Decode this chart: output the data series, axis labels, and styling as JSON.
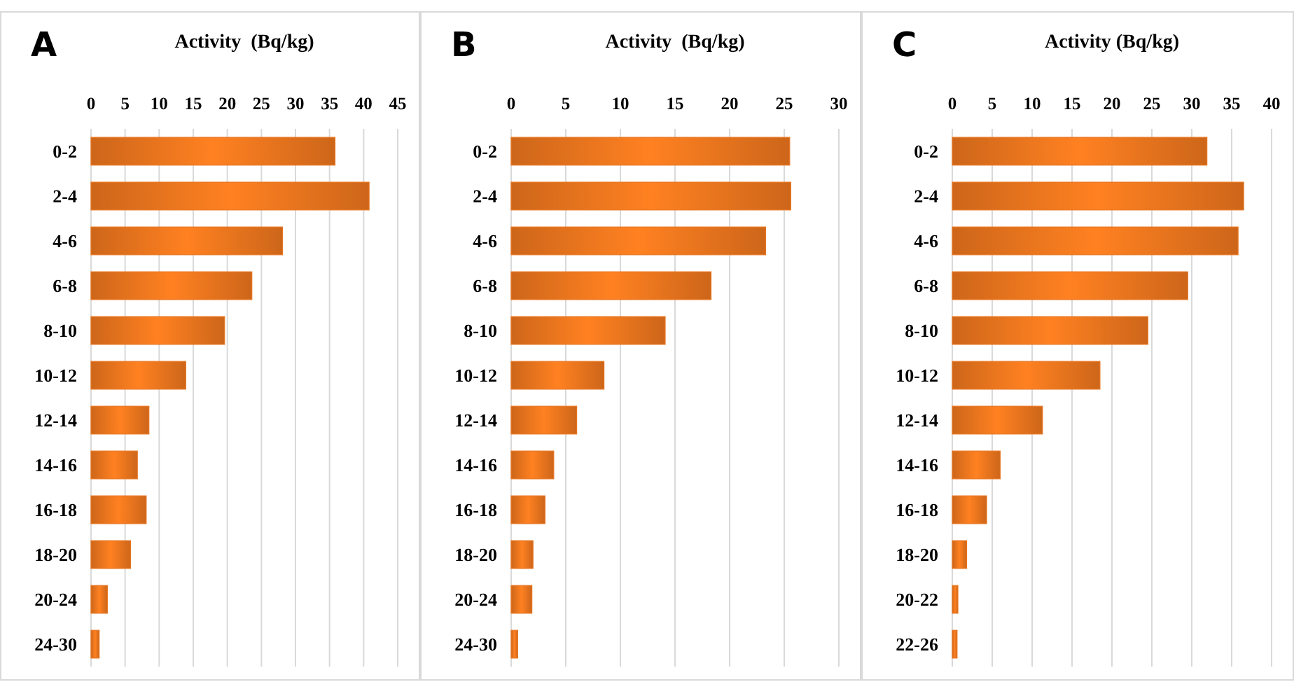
{
  "chart_data": [
    {
      "type": "bar",
      "orientation": "horizontal",
      "title": "A",
      "xlabel": "Activity  (Bq/kg)",
      "categories": [
        "0-2",
        "2-4",
        "4-6",
        "6-8",
        "8-10",
        "10-12",
        "12-14",
        "14-16",
        "16-18",
        "18-20",
        "20-24",
        "24-30"
      ],
      "values": [
        35.8,
        40.8,
        28.1,
        23.6,
        19.6,
        13.9,
        8.5,
        6.8,
        8.1,
        5.8,
        2.4,
        1.2
      ],
      "color": "#e8741e",
      "xlim": [
        0,
        45
      ],
      "xticks": [
        0,
        5,
        10,
        15,
        20,
        25,
        30,
        35,
        40,
        45
      ],
      "grid": "x"
    },
    {
      "type": "bar",
      "orientation": "horizontal",
      "title": "B",
      "xlabel": "Activity  (Bq/kg)",
      "categories": [
        "0-2",
        "2-4",
        "4-6",
        "6-8",
        "8-10",
        "10-12",
        "12-14",
        "14-16",
        "16-18",
        "18-20",
        "20-24",
        "24-30"
      ],
      "values": [
        25.5,
        25.6,
        23.3,
        18.3,
        14.1,
        8.5,
        6.0,
        3.9,
        3.1,
        2.0,
        1.9,
        0.6
      ],
      "color": "#e8741e",
      "xlim": [
        0,
        30
      ],
      "xticks": [
        0,
        5,
        10,
        15,
        20,
        25,
        30
      ],
      "grid": "x"
    },
    {
      "type": "bar",
      "orientation": "horizontal",
      "title": "C",
      "xlabel": "Activity (Bq/kg)",
      "categories": [
        "0-2",
        "2-4",
        "4-6",
        "6-8",
        "8-10",
        "10-12",
        "12-14",
        "14-16",
        "16-18",
        "18-20",
        "20-22",
        "22-26"
      ],
      "values": [
        31.9,
        36.5,
        35.8,
        29.5,
        24.5,
        18.5,
        11.3,
        6.0,
        4.3,
        1.8,
        0.7,
        0.6
      ],
      "color": "#e8741e",
      "xlim": [
        0,
        40
      ],
      "xticks": [
        0,
        5,
        10,
        15,
        20,
        25,
        30,
        35,
        40
      ],
      "grid": "x"
    }
  ]
}
